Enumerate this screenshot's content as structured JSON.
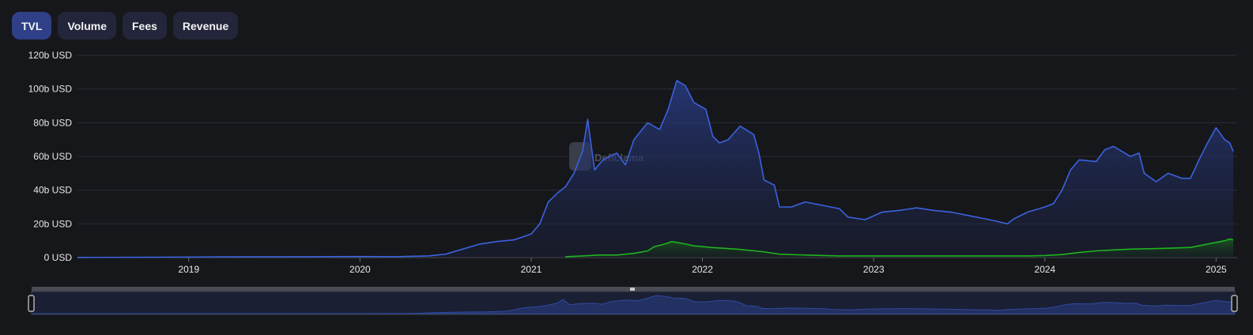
{
  "tabs": [
    {
      "label": "TVL",
      "active": true
    },
    {
      "label": "Volume",
      "active": false
    },
    {
      "label": "Fees",
      "active": false
    },
    {
      "label": "Revenue",
      "active": false
    }
  ],
  "watermark": "DefiLlama",
  "colors": {
    "background": "#16171b",
    "tvl_line": "#3b62dd",
    "secondary_line": "#1fb31f",
    "active_tab": "#2f3f88",
    "tab": "#23263a"
  },
  "chart_data": {
    "type": "area",
    "x_unit": "year",
    "xlim": [
      2018.35,
      2025.1
    ],
    "ylim": [
      0,
      120
    ],
    "y_ticks": [
      {
        "value": 0,
        "label": "0 USD"
      },
      {
        "value": 20,
        "label": "20b USD"
      },
      {
        "value": 40,
        "label": "40b USD"
      },
      {
        "value": 60,
        "label": "60b USD"
      },
      {
        "value": 80,
        "label": "80b USD"
      },
      {
        "value": 100,
        "label": "100b USD"
      },
      {
        "value": 120,
        "label": "120b USD"
      }
    ],
    "x_ticks": [
      {
        "value": 2019,
        "label": "2019"
      },
      {
        "value": 2020,
        "label": "2020"
      },
      {
        "value": 2021,
        "label": "2021"
      },
      {
        "value": 2022,
        "label": "2022"
      },
      {
        "value": 2023,
        "label": "2023"
      },
      {
        "value": 2024,
        "label": "2024"
      },
      {
        "value": 2025,
        "label": "2025"
      }
    ],
    "grid": true,
    "series": [
      {
        "color": "#3b62dd",
        "fill": true,
        "points": [
          [
            2018.35,
            0.1
          ],
          [
            2018.8,
            0.2
          ],
          [
            2019.2,
            0.4
          ],
          [
            2019.7,
            0.5
          ],
          [
            2020.0,
            0.6
          ],
          [
            2020.2,
            0.5
          ],
          [
            2020.4,
            1.0
          ],
          [
            2020.5,
            2.0
          ],
          [
            2020.6,
            5.0
          ],
          [
            2020.7,
            8.0
          ],
          [
            2020.8,
            9.5
          ],
          [
            2020.9,
            10.5
          ],
          [
            2021.0,
            14.0
          ],
          [
            2021.05,
            20.0
          ],
          [
            2021.1,
            33.0
          ],
          [
            2021.15,
            38.0
          ],
          [
            2021.2,
            42.0
          ],
          [
            2021.25,
            50.0
          ],
          [
            2021.3,
            63.0
          ],
          [
            2021.33,
            82.0
          ],
          [
            2021.37,
            52.0
          ],
          [
            2021.42,
            58.0
          ],
          [
            2021.5,
            62.0
          ],
          [
            2021.55,
            55.0
          ],
          [
            2021.6,
            70.0
          ],
          [
            2021.68,
            80.0
          ],
          [
            2021.75,
            76.0
          ],
          [
            2021.8,
            88.0
          ],
          [
            2021.85,
            105.0
          ],
          [
            2021.9,
            102.0
          ],
          [
            2021.95,
            92.0
          ],
          [
            2022.02,
            88.0
          ],
          [
            2022.06,
            72.0
          ],
          [
            2022.1,
            68.0
          ],
          [
            2022.15,
            70.0
          ],
          [
            2022.22,
            78.0
          ],
          [
            2022.3,
            73.0
          ],
          [
            2022.33,
            62.0
          ],
          [
            2022.36,
            46.0
          ],
          [
            2022.42,
            43.0
          ],
          [
            2022.45,
            30.0
          ],
          [
            2022.52,
            30.0
          ],
          [
            2022.6,
            33.0
          ],
          [
            2022.7,
            31.0
          ],
          [
            2022.8,
            29.0
          ],
          [
            2022.85,
            24.0
          ],
          [
            2022.95,
            22.5
          ],
          [
            2023.05,
            27.0
          ],
          [
            2023.15,
            28.0
          ],
          [
            2023.25,
            29.5
          ],
          [
            2023.35,
            28.0
          ],
          [
            2023.45,
            27.0
          ],
          [
            2023.55,
            25.0
          ],
          [
            2023.65,
            23.0
          ],
          [
            2023.72,
            21.5
          ],
          [
            2023.78,
            20.0
          ],
          [
            2023.82,
            23.0
          ],
          [
            2023.9,
            27.0
          ],
          [
            2024.0,
            30.0
          ],
          [
            2024.05,
            32.0
          ],
          [
            2024.1,
            40.0
          ],
          [
            2024.15,
            52.0
          ],
          [
            2024.2,
            58.0
          ],
          [
            2024.3,
            57.0
          ],
          [
            2024.35,
            64.0
          ],
          [
            2024.4,
            66.0
          ],
          [
            2024.5,
            60.0
          ],
          [
            2024.55,
            62.0
          ],
          [
            2024.58,
            50.0
          ],
          [
            2024.65,
            45.0
          ],
          [
            2024.72,
            50.0
          ],
          [
            2024.8,
            47.0
          ],
          [
            2024.85,
            47.0
          ],
          [
            2024.9,
            58.0
          ],
          [
            2024.95,
            68.0
          ],
          [
            2025.0,
            77.0
          ],
          [
            2025.05,
            70.0
          ],
          [
            2025.08,
            68.0
          ],
          [
            2025.1,
            63.0
          ]
        ]
      },
      {
        "color": "#1fb31f",
        "fill": true,
        "points": [
          [
            2021.2,
            0.5
          ],
          [
            2021.3,
            1.0
          ],
          [
            2021.4,
            1.5
          ],
          [
            2021.5,
            1.5
          ],
          [
            2021.6,
            2.5
          ],
          [
            2021.68,
            4.0
          ],
          [
            2021.72,
            6.5
          ],
          [
            2021.78,
            8.0
          ],
          [
            2021.82,
            9.5
          ],
          [
            2021.88,
            8.5
          ],
          [
            2021.95,
            7.0
          ],
          [
            2022.05,
            6.0
          ],
          [
            2022.2,
            5.0
          ],
          [
            2022.35,
            3.5
          ],
          [
            2022.45,
            2.0
          ],
          [
            2022.6,
            1.5
          ],
          [
            2022.8,
            1.0
          ],
          [
            2023.0,
            1.0
          ],
          [
            2023.5,
            1.0
          ],
          [
            2023.9,
            1.0
          ],
          [
            2024.0,
            1.2
          ],
          [
            2024.1,
            1.8
          ],
          [
            2024.2,
            3.0
          ],
          [
            2024.3,
            4.0
          ],
          [
            2024.5,
            5.0
          ],
          [
            2024.7,
            5.5
          ],
          [
            2024.85,
            6.0
          ],
          [
            2024.95,
            8.0
          ],
          [
            2025.0,
            9.0
          ],
          [
            2025.05,
            10.0
          ],
          [
            2025.08,
            11.0
          ],
          [
            2025.1,
            10.5
          ]
        ]
      }
    ]
  }
}
